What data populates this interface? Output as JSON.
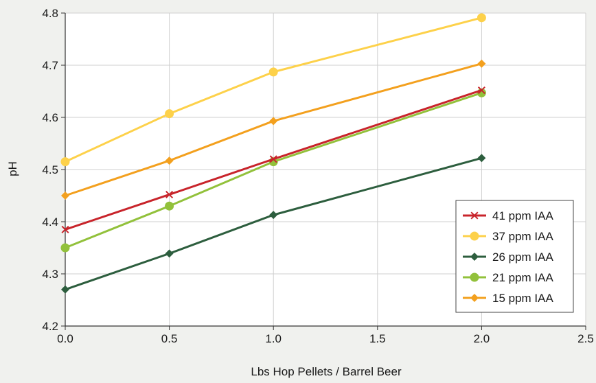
{
  "chart_data": {
    "type": "line",
    "title": "",
    "xlabel": "Lbs Hop Pellets / Barrel Beer",
    "ylabel": "pH",
    "xlim": [
      0,
      2.5
    ],
    "ylim": [
      4.2,
      4.8
    ],
    "x_ticks": [
      "0.0",
      "0.5",
      "1.0",
      "1.5",
      "2.0",
      "2.5"
    ],
    "y_ticks": [
      "4.2",
      "4.3",
      "4.4",
      "4.5",
      "4.6",
      "4.7",
      "4.8"
    ],
    "grid": true,
    "legend_position": "right",
    "x": [
      0,
      0.5,
      1.0,
      2.0
    ],
    "series": [
      {
        "name": "41 ppm IAA",
        "color": "#c8242b",
        "marker": "x-mark",
        "values": [
          4.385,
          4.452,
          4.52,
          4.652
        ]
      },
      {
        "name": "37 ppm IAA",
        "color": "#fdd14a",
        "marker": "circle",
        "values": [
          4.515,
          4.607,
          4.687,
          4.791
        ]
      },
      {
        "name": "26 ppm IAA",
        "color": "#2d5e3e",
        "marker": "diamond",
        "values": [
          4.27,
          4.339,
          4.413,
          4.522
        ]
      },
      {
        "name": "21 ppm IAA",
        "color": "#92c13b",
        "marker": "circle",
        "values": [
          4.35,
          4.43,
          4.515,
          4.647
        ]
      },
      {
        "name": "15 ppm IAA",
        "color": "#f3a01e",
        "marker": "diamond",
        "values": [
          4.45,
          4.517,
          4.593,
          4.703
        ]
      }
    ]
  }
}
